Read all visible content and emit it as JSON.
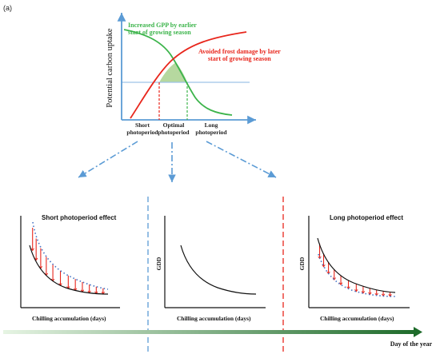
{
  "panel_label": "(a)",
  "top": {
    "ylabel": "Potential carbon uptake",
    "green_label_line1": "Increased GPP by earlier",
    "green_label_line2": "start of growing season",
    "red_label_line1": "Avoided frost damage by later",
    "red_label_line2": "start of growing season",
    "x_labels": [
      {
        "line1": "Short",
        "line2": "photoperiod"
      },
      {
        "line1": "Optimal",
        "line2": "photoperiod"
      },
      {
        "line1": "Long",
        "line2": "photoperiod"
      }
    ]
  },
  "bottom": {
    "left_title": "Short photoperiod effect",
    "right_title": "Long photoperiod effect",
    "ylabel": "GDD",
    "xlabel": "Chilling accumulation (days)"
  },
  "timeline_label": "Day of the year",
  "colors": {
    "green": "#3cb44b",
    "red": "#e8261c",
    "blue": "#5b9bd5",
    "axis_blue": "#5b9bd5",
    "shade": "#a9d18e",
    "hline": "#9dc3e6",
    "dark_green": "#2e7d32"
  }
}
